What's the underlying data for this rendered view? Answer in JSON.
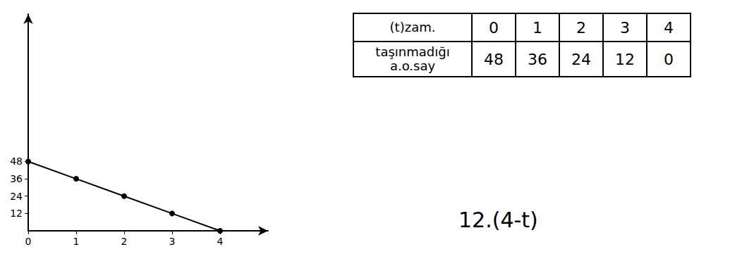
{
  "chart_data": {
    "type": "line",
    "x": [
      0,
      1,
      2,
      3,
      4
    ],
    "values": [
      48,
      36,
      24,
      12,
      0
    ],
    "color": "#000000",
    "marker": "circle",
    "xlim": [
      0,
      5
    ],
    "xticks": [
      0,
      1,
      2,
      3,
      4
    ],
    "ylim": [
      0,
      150
    ],
    "yticks": [
      12,
      24,
      36,
      48
    ],
    "grid": false
  },
  "table": {
    "rows": [
      [
        "(t)zam.",
        0,
        1,
        2,
        3,
        4
      ],
      [
        "taşınmadığı a.o.say",
        48,
        36,
        24,
        12,
        0
      ]
    ]
  },
  "formula": "12.(4-t)"
}
